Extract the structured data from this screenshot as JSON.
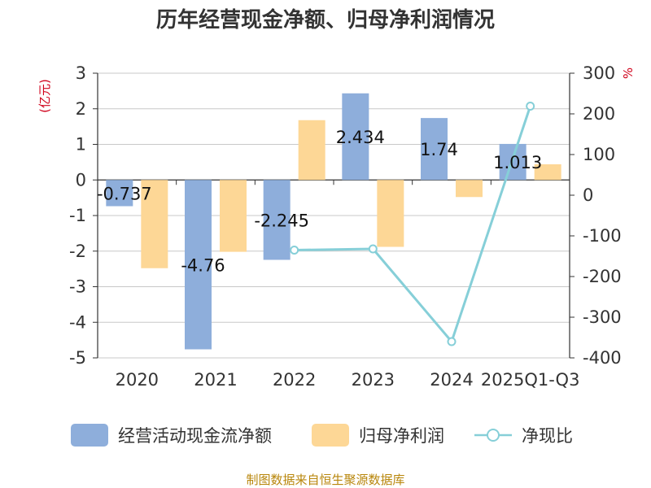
{
  "chart_data": {
    "type": "bar",
    "title": "历年经营现金净额、归母净利润情况",
    "categories": [
      "2020",
      "2021",
      "2022",
      "2023",
      "2024",
      "2025Q1-Q3"
    ],
    "left_axis": {
      "unit": "(亿元)",
      "ylim": [
        -5,
        3
      ],
      "ticks": [
        "3",
        "2",
        "1",
        "0",
        "-1",
        "-2",
        "-3",
        "-4",
        "-5"
      ]
    },
    "right_axis": {
      "unit": "%",
      "ylim": [
        -400,
        300
      ],
      "ticks": [
        "300",
        "200",
        "100",
        "0",
        "-100",
        "-200",
        "-300",
        "-400"
      ]
    },
    "series": [
      {
        "name": "经营活动现金流净额",
        "type": "bar",
        "axis": "left",
        "color": "#8eaedb",
        "values": [
          -0.737,
          -4.76,
          -2.245,
          2.434,
          1.74,
          1.013
        ],
        "labels": [
          "-0.737",
          "-4.76",
          "-2.245",
          "2.434",
          "1.74",
          "1.013"
        ]
      },
      {
        "name": "归母净利润",
        "type": "bar",
        "axis": "left",
        "color": "#fdd796",
        "values": [
          -2.48,
          -2.02,
          1.68,
          -1.88,
          -0.48,
          0.44
        ]
      },
      {
        "name": "净现比",
        "type": "line",
        "axis": "right",
        "color": "#86cfd8",
        "values": [
          null,
          null,
          -135,
          -132,
          -360,
          219
        ]
      }
    ],
    "legend_position": "bottom"
  },
  "source_note": "制图数据来自恒生聚源数据库"
}
